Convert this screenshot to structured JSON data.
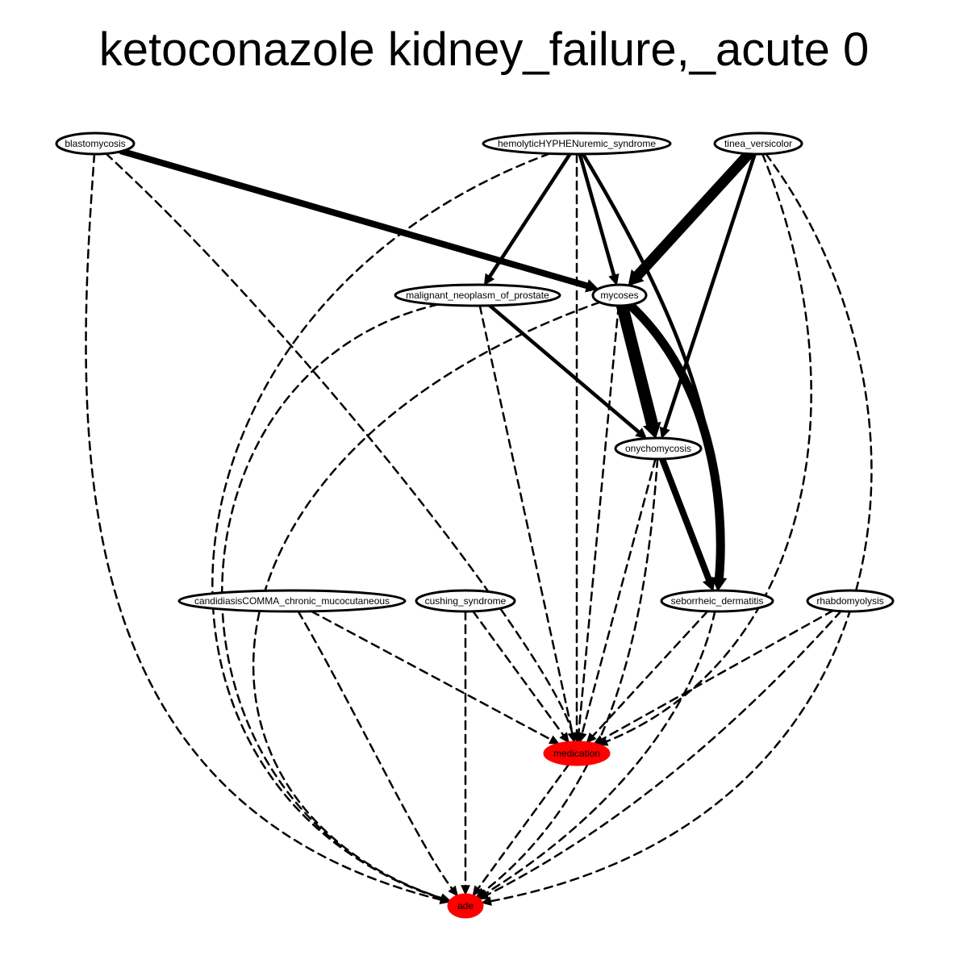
{
  "title": "ketoconazole kidney_failure,_acute 0",
  "colors": {
    "highlight": "#ff0000",
    "outline": "#000000"
  },
  "nodes": [
    {
      "id": "blastomycosis",
      "label": "blastomycosis"
    },
    {
      "id": "hus",
      "label": "hemolyticHYPHENuremic_syndrome"
    },
    {
      "id": "tinea",
      "label": "tinea_versicolor"
    },
    {
      "id": "prostate",
      "label": "malignant_neoplasm_of_prostate"
    },
    {
      "id": "mycoses",
      "label": "mycoses"
    },
    {
      "id": "onycho",
      "label": "onychomycosis"
    },
    {
      "id": "candidiasis",
      "label": "candidiasisCOMMA_chronic_mucocutaneous"
    },
    {
      "id": "cushing",
      "label": "cushing_syndrome"
    },
    {
      "id": "seborrheic",
      "label": "seborrheic_dermatitis"
    },
    {
      "id": "rhabdo",
      "label": "rhabdomyolysis"
    },
    {
      "id": "medication",
      "label": "medication",
      "highlight": true
    },
    {
      "id": "ade",
      "label": "ade",
      "highlight": true
    }
  ],
  "edges": [
    {
      "from": "blastomycosis",
      "to": "mycoses",
      "style": "solid",
      "weight": 8
    },
    {
      "from": "blastomycosis",
      "to": "medication",
      "style": "dashed",
      "weight": 2.5
    },
    {
      "from": "blastomycosis",
      "to": "ade",
      "style": "dashed",
      "weight": 2.5
    },
    {
      "from": "hus",
      "to": "prostate",
      "style": "solid",
      "weight": 4.5
    },
    {
      "from": "hus",
      "to": "mycoses",
      "style": "solid",
      "weight": 4.5
    },
    {
      "from": "hus",
      "to": "seborrheic",
      "style": "solid",
      "weight": 4.5
    },
    {
      "from": "hus",
      "to": "medication",
      "style": "dashed",
      "weight": 2.5
    },
    {
      "from": "hus",
      "to": "ade",
      "style": "dashed",
      "weight": 2.5
    },
    {
      "from": "tinea",
      "to": "mycoses",
      "style": "solid",
      "weight": 13
    },
    {
      "from": "tinea",
      "to": "onycho",
      "style": "solid",
      "weight": 4.5
    },
    {
      "from": "tinea",
      "to": "medication",
      "style": "dashed",
      "weight": 2.5
    },
    {
      "from": "tinea",
      "to": "ade",
      "style": "dashed",
      "weight": 2.5
    },
    {
      "from": "prostate",
      "to": "onycho",
      "style": "solid",
      "weight": 4.5
    },
    {
      "from": "prostate",
      "to": "medication",
      "style": "dashed",
      "weight": 2.5
    },
    {
      "from": "prostate",
      "to": "ade",
      "style": "dashed",
      "weight": 2.5
    },
    {
      "from": "mycoses",
      "to": "onycho",
      "style": "solid",
      "weight": 15
    },
    {
      "from": "mycoses",
      "to": "seborrheic",
      "style": "solid",
      "weight": 11
    },
    {
      "from": "mycoses",
      "to": "medication",
      "style": "dashed",
      "weight": 2.5
    },
    {
      "from": "mycoses",
      "to": "ade",
      "style": "dashed",
      "weight": 2.5
    },
    {
      "from": "onycho",
      "to": "seborrheic",
      "style": "solid",
      "weight": 8
    },
    {
      "from": "onycho",
      "to": "medication",
      "style": "dashed",
      "weight": 2.5
    },
    {
      "from": "onycho",
      "to": "ade",
      "style": "dashed",
      "weight": 2.5
    },
    {
      "from": "candidiasis",
      "to": "medication",
      "style": "dashed",
      "weight": 2.5
    },
    {
      "from": "candidiasis",
      "to": "ade",
      "style": "dashed",
      "weight": 2.5
    },
    {
      "from": "cushing",
      "to": "medication",
      "style": "dashed",
      "weight": 2.5
    },
    {
      "from": "cushing",
      "to": "ade",
      "style": "dashed",
      "weight": 2.5
    },
    {
      "from": "seborrheic",
      "to": "medication",
      "style": "dashed",
      "weight": 2.5
    },
    {
      "from": "seborrheic",
      "to": "ade",
      "style": "dashed",
      "weight": 2.5
    },
    {
      "from": "rhabdo",
      "to": "medication",
      "style": "dashed",
      "weight": 2.5
    },
    {
      "from": "rhabdo",
      "to": "ade",
      "style": "dashed",
      "weight": 2.5
    },
    {
      "from": "medication",
      "to": "ade",
      "style": "dashed",
      "weight": 2.5
    }
  ]
}
